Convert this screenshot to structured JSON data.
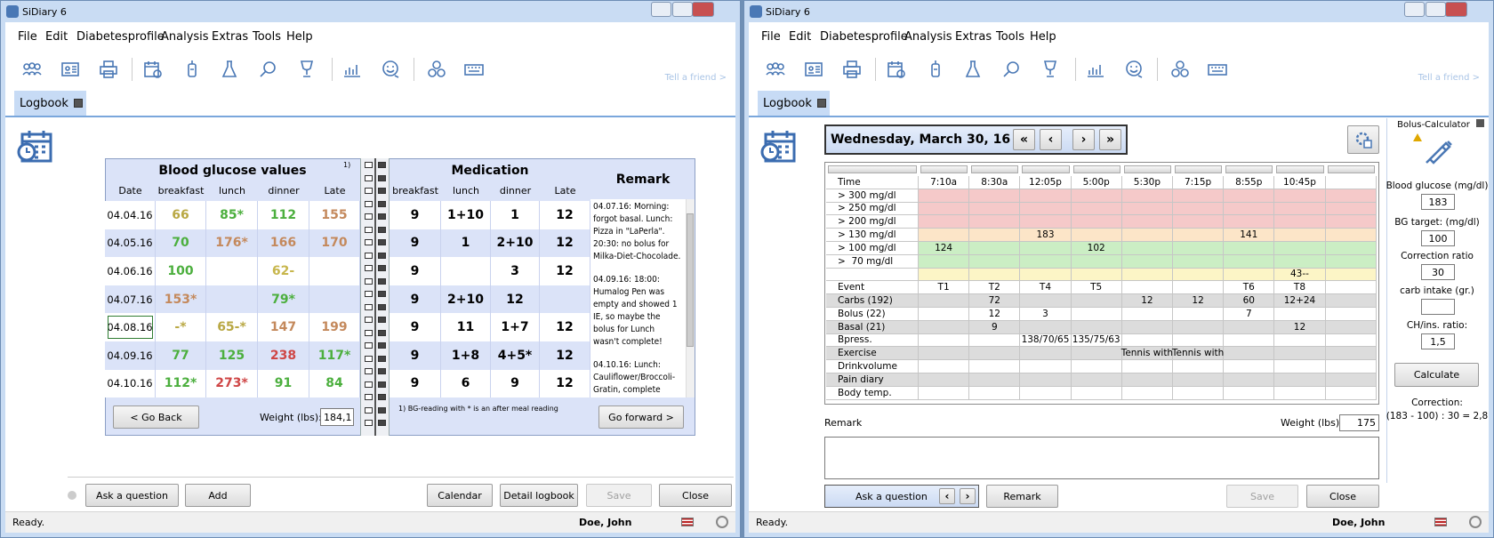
{
  "windows": [
    {
      "title": "SiDiary 6",
      "menu": [
        "File",
        "Edit",
        "Diabetesprofile",
        "Analysis",
        "Extras",
        "Tools",
        "Help"
      ],
      "tell_friend": "Tell a friend >",
      "tab": "Logbook",
      "status": "Ready.",
      "user": "Doe, John"
    },
    {
      "title": "SiDiary 6",
      "menu": [
        "File",
        "Edit",
        "Diabetesprofile",
        "Analysis",
        "Extras",
        "Tools",
        "Help"
      ],
      "tell_friend": "Tell a friend >",
      "tab": "Logbook",
      "status": "Ready.",
      "user": "Doe, John"
    }
  ],
  "logbook": {
    "glucose_title": "Blood glucose values",
    "footnote_mark": "1)",
    "glucose_headers": [
      "Date",
      "breakfast",
      "lunch",
      "dinner",
      "Late"
    ],
    "medication_title": "Medication",
    "medication_headers": [
      "breakfast",
      "lunch",
      "dinner",
      "Late"
    ],
    "rows": [
      {
        "date": "04.04.16",
        "glucose": [
          66,
          "85*",
          112,
          155
        ],
        "glucose_colors": [
          "#b9a844",
          "#4caf3e",
          "#4caf3e",
          "#c4895c"
        ],
        "medication": [
          9,
          "1+10",
          1,
          12
        ]
      },
      {
        "date": "04.05.16",
        "glucose": [
          70,
          "176*",
          166,
          170
        ],
        "glucose_colors": [
          "#4caf3e",
          "#c4895c",
          "#c4895c",
          "#c4895c"
        ],
        "medication": [
          9,
          1,
          "2+10",
          12
        ]
      },
      {
        "date": "04.06.16",
        "glucose": [
          100,
          null,
          "62-",
          null
        ],
        "glucose_colors": [
          "#4caf3e",
          null,
          "#c7b64c",
          null
        ],
        "medication": [
          9,
          null,
          3,
          12
        ]
      },
      {
        "date": "04.07.16",
        "glucose": [
          "153*",
          null,
          "79*",
          null
        ],
        "glucose_colors": [
          "#c4895c",
          null,
          "#4caf3e",
          null
        ],
        "medication": [
          9,
          "2+10",
          12,
          null
        ]
      },
      {
        "date": "04.08.16",
        "glucose": [
          "-*",
          "65-*",
          147,
          199
        ],
        "glucose_colors": [
          "#b9a844",
          "#b9a844",
          "#c4895c",
          "#c4895c"
        ],
        "medication": [
          9,
          11,
          "1+7",
          12
        ]
      },
      {
        "date": "04.09.16",
        "glucose": [
          77,
          125,
          238,
          "117*"
        ],
        "glucose_colors": [
          "#4caf3e",
          "#4caf3e",
          "#cf4646",
          "#4caf3e"
        ],
        "medication": [
          9,
          "1+8",
          "4+5*",
          12
        ]
      },
      {
        "date": "04.10.16",
        "glucose": [
          "112*",
          "273*",
          91,
          84
        ],
        "glucose_colors": [
          "#4caf3e",
          "#cf4646",
          "#4caf3e",
          "#4caf3e"
        ],
        "medication": [
          9,
          6,
          9,
          12
        ]
      }
    ],
    "remark_title": "Remark",
    "remarks": [
      "04.07.16: Morning: forgot basal. Lunch: Pizza in \"LaPerla\". 20:30: no bolus for Milka-Diet-Chocolade.",
      "04.09.16: 18:00: Humalog Pen was empty and showed 1 IE, so maybe the bolus for Lunch wasn't complete!",
      "04.10.16: Lunch: Cauliflower/Broccoli-Gratin, complete"
    ],
    "back": "< Go Back",
    "weight_label": "Weight (lbs):",
    "weight": "184,1",
    "footnote": "1) BG-reading with * is an after meal reading",
    "forward": "Go forward >",
    "buttons": [
      "Ask a question",
      "Add",
      "Calendar",
      "Detail logbook",
      "Save",
      "Close"
    ]
  },
  "day": {
    "date": "Wednesday, March 30, 16",
    "nav": [
      "«",
      "‹",
      "›",
      "»"
    ],
    "time_label": "Time",
    "times": [
      "7:10a",
      "8:30a",
      "12:05p",
      "5:00p",
      "5:30p",
      "7:15p",
      "8:55p",
      "10:45p",
      null
    ],
    "bg_rows": [
      {
        "label": "> 300 mg/dl",
        "color": "#f5c9c9",
        "cells": [
          null,
          null,
          null,
          null,
          null,
          null,
          null,
          null,
          null
        ]
      },
      {
        "label": "> 250 mg/dl",
        "color": "#f5c9c9",
        "cells": [
          null,
          null,
          null,
          null,
          null,
          null,
          null,
          null,
          null
        ]
      },
      {
        "label": "> 200 mg/dl",
        "color": "#f5c9c9",
        "cells": [
          null,
          null,
          null,
          null,
          null,
          null,
          null,
          null,
          null
        ]
      },
      {
        "label": "> 130 mg/dl",
        "color": "#fce5c8",
        "cells": [
          null,
          null,
          183,
          null,
          null,
          null,
          141,
          null,
          null
        ]
      },
      {
        "label": "> 100 mg/dl",
        "color": "#cbeec4",
        "cells": [
          124,
          null,
          null,
          102,
          null,
          null,
          null,
          null,
          null
        ]
      },
      {
        "label": ">  70 mg/dl",
        "color": "#cbeec4",
        "cells": [
          null,
          null,
          null,
          null,
          null,
          null,
          null,
          null,
          null
        ]
      },
      {
        "label": null,
        "color": "#fcf5c6",
        "cells": [
          null,
          null,
          null,
          null,
          null,
          null,
          null,
          "43--",
          null
        ]
      }
    ],
    "rows": [
      {
        "label": "Event",
        "cells": [
          "T1",
          "T2",
          "T4",
          "T5",
          null,
          null,
          "T6",
          "T8",
          null
        ]
      },
      {
        "label": "Carbs (192)",
        "cells": [
          null,
          72,
          null,
          null,
          12,
          12,
          60,
          "12+24",
          null
        ]
      },
      {
        "label": "Bolus (22)",
        "cells": [
          null,
          12,
          3,
          null,
          null,
          null,
          7,
          null,
          null
        ]
      },
      {
        "label": "Basal (21)",
        "cells": [
          null,
          9,
          null,
          null,
          null,
          null,
          null,
          12,
          null
        ]
      },
      {
        "label": "Bpress.",
        "cells": [
          null,
          null,
          "138/70/65",
          "135/75/63",
          null,
          null,
          null,
          null,
          null
        ]
      },
      {
        "label": "Exercise",
        "cells": [
          null,
          null,
          null,
          null,
          "Tennis with",
          "Tennis with",
          null,
          null,
          null
        ]
      },
      {
        "label": "Drinkvolume",
        "cells": [
          null,
          null,
          null,
          null,
          null,
          null,
          null,
          null,
          null
        ]
      },
      {
        "label": "Pain diary",
        "cells": [
          null,
          null,
          null,
          null,
          null,
          null,
          null,
          null,
          null
        ]
      },
      {
        "label": "Body temp.",
        "cells": [
          null,
          null,
          null,
          null,
          null,
          null,
          null,
          null,
          null
        ]
      }
    ],
    "remark_label": "Remark",
    "weight_label": "Weight (lbs):",
    "weight": 175,
    "ask": "Ask a question",
    "ask_nav": [
      "‹",
      "›"
    ],
    "buttons": [
      "Remark",
      "Save",
      "Close"
    ]
  },
  "bolus": {
    "title": "Bolus-Calculator",
    "fields": [
      {
        "label": "Blood glucose (mg/dl)",
        "value": 183
      },
      {
        "label": "BG target: (mg/dl)",
        "value": 100
      },
      {
        "label": "Correction ratio",
        "value": 30
      },
      {
        "label": "carb intake (gr.)",
        "value": null
      },
      {
        "label": "CH/ins. ratio:",
        "value": "1,5"
      }
    ],
    "button": "Calculate",
    "result_label": "Correction:",
    "result": "(183 - 100) : 30 = 2,8"
  }
}
